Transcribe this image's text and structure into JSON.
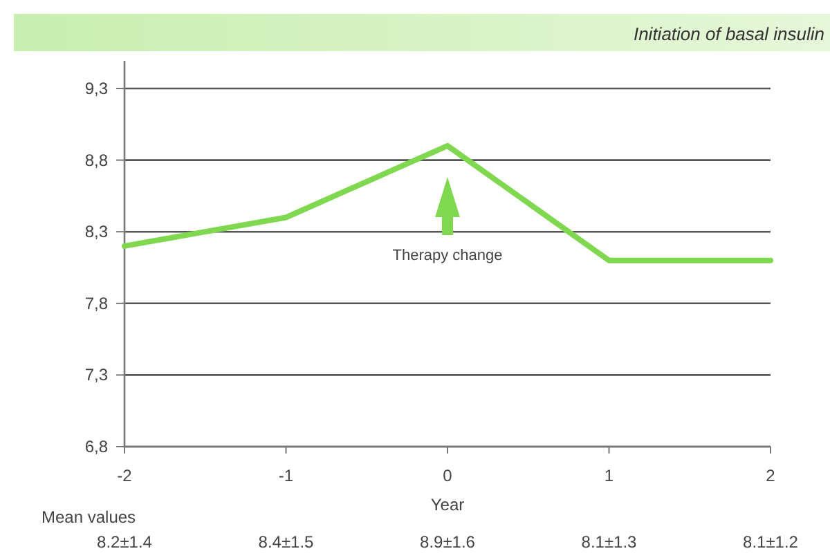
{
  "chart_data": {
    "type": "line",
    "title": "Initiation of basal insulin",
    "xlabel": "Year",
    "x": [
      -2,
      -1,
      0,
      1,
      2
    ],
    "series": [
      {
        "color": "#7fd850",
        "values": [
          8.2,
          8.4,
          8.9,
          8.1,
          8.1
        ]
      }
    ],
    "xlim": [
      -2,
      2
    ],
    "xticks": [
      -2,
      -1,
      0,
      1,
      2
    ],
    "ylim": [
      6.8,
      9.3
    ],
    "yticks": [
      {
        "value": 6.8,
        "label": "6,8"
      },
      {
        "value": 7.3,
        "label": "7,3"
      },
      {
        "value": 7.8,
        "label": "7,8"
      },
      {
        "value": 8.3,
        "label": "8,3"
      },
      {
        "value": 8.8,
        "label": "8,8"
      },
      {
        "value": 9.3,
        "label": "9,3"
      }
    ],
    "grid": "y",
    "marker": "none",
    "line_style": "solid",
    "annotations": [
      "Therapy change",
      "Mean values",
      "8.2±1.4",
      "8.4±1.5",
      "8.9±1.6",
      "8.1±1.3",
      "8.1±1.2"
    ]
  }
}
